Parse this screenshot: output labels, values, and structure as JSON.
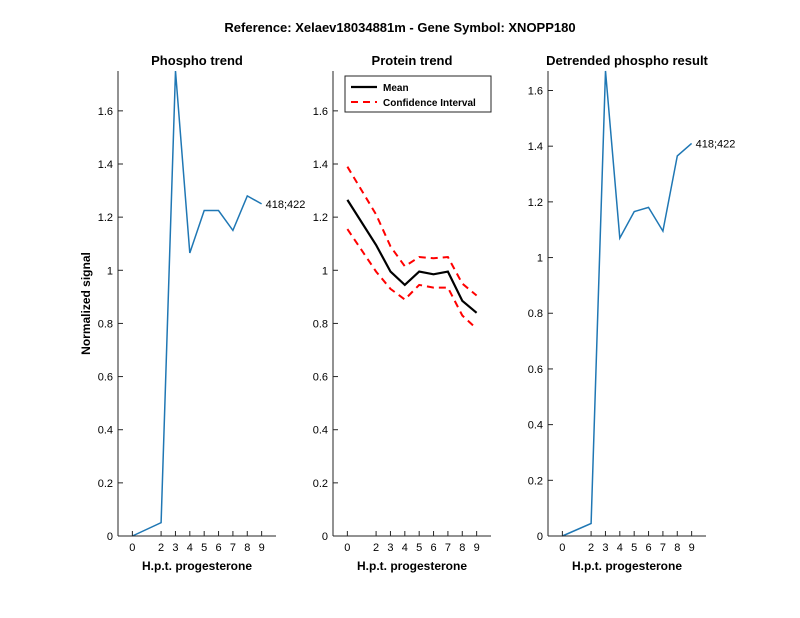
{
  "figure_title": "Reference:  Xelaev18034881m - Gene Symbol:  XNOPP180",
  "colors": {
    "trace": "#1f77b4",
    "mean": "#000000",
    "ci": "#ff0000",
    "axis": "#262626"
  },
  "chart_data": [
    {
      "type": "line",
      "title": "Phospho trend",
      "xlabel": "H.p.t. progesterone",
      "ylabel": "Normalized signal",
      "x_categories": [
        "0",
        "2",
        "3",
        "4",
        "5",
        "6",
        "7",
        "8",
        "9"
      ],
      "xlim": [
        -1,
        10
      ],
      "ylim": [
        0,
        1.75
      ],
      "yticks": [
        0,
        0.2,
        0.4,
        0.6,
        0.8,
        1,
        1.2,
        1.4,
        1.6
      ],
      "series": [
        {
          "name": "418;422",
          "values": [
            0.0,
            0.05,
            1.75,
            1.065,
            1.225,
            1.225,
            1.15,
            1.28,
            1.25
          ]
        }
      ],
      "annotation": "418;422"
    },
    {
      "type": "line",
      "title": "Protein trend",
      "xlabel": "H.p.t. progesterone",
      "x_categories": [
        "0",
        "2",
        "3",
        "4",
        "5",
        "6",
        "7",
        "8",
        "9"
      ],
      "xlim": [
        -1,
        10
      ],
      "ylim": [
        0,
        1.75
      ],
      "yticks": [
        0,
        0.2,
        0.4,
        0.6,
        0.8,
        1,
        1.2,
        1.4,
        1.6
      ],
      "legend": {
        "placement": "top-left",
        "entries": [
          "Mean",
          "Confidence Interval"
        ]
      },
      "series": [
        {
          "name": "Mean",
          "values": [
            1.265,
            1.095,
            0.995,
            0.945,
            0.995,
            0.985,
            0.995,
            0.885,
            0.84
          ]
        },
        {
          "name": "Confidence Interval",
          "role": "upper",
          "values": [
            1.39,
            1.21,
            1.09,
            1.015,
            1.05,
            1.045,
            1.05,
            0.95,
            0.905
          ]
        },
        {
          "name": "Confidence Interval",
          "role": "lower",
          "values": [
            1.155,
            0.995,
            0.93,
            0.89,
            0.945,
            0.935,
            0.935,
            0.83,
            0.78
          ]
        }
      ]
    },
    {
      "type": "line",
      "title": "Detrended phospho result",
      "xlabel": "H.p.t. progesterone",
      "x_categories": [
        "0",
        "2",
        "3",
        "4",
        "5",
        "6",
        "7",
        "8",
        "9"
      ],
      "xlim": [
        -1,
        10
      ],
      "ylim": [
        0,
        1.67
      ],
      "yticks": [
        0,
        0.2,
        0.4,
        0.6,
        0.8,
        1,
        1.2,
        1.4,
        1.6
      ],
      "series": [
        {
          "name": "418;422",
          "values": [
            0.0,
            0.045,
            1.67,
            1.07,
            1.165,
            1.18,
            1.095,
            1.365,
            1.41
          ]
        }
      ],
      "annotation": "418;422"
    }
  ]
}
